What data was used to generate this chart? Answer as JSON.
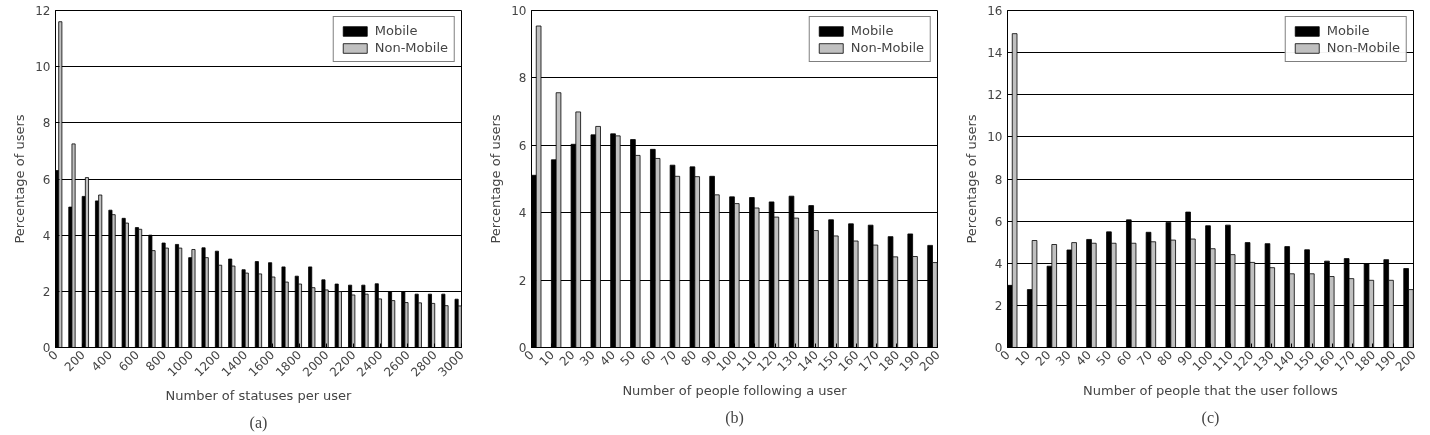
{
  "chart_data": [
    {
      "type": "bar",
      "xlabel": "Number of statuses per user",
      "ylabel": "Percentage of users",
      "annotations": [
        "(a)"
      ],
      "x": [
        0,
        98,
        197,
        295,
        394,
        492,
        590,
        689,
        787,
        886,
        984,
        1082,
        1181,
        1279,
        1378,
        1476,
        1574,
        1673,
        1771,
        1870,
        1968,
        2066,
        2165,
        2263,
        2362,
        2460,
        2558,
        2657,
        2755,
        2854,
        2952
      ],
      "series": [
        {
          "name": "Mobile",
          "color": "#000000",
          "values": [
            6.3,
            5.0,
            5.38,
            5.22,
            4.89,
            4.6,
            4.27,
            4.0,
            3.72,
            3.67,
            3.2,
            3.55,
            3.43,
            3.15,
            2.77,
            3.06,
            3.02,
            2.87,
            2.54,
            2.87,
            2.41,
            2.26,
            2.22,
            2.22,
            2.27,
            1.99,
            1.99,
            1.9,
            1.9,
            1.9,
            1.72
          ]
        },
        {
          "name": "Non-Mobile",
          "color": "#c0c0c0",
          "values": [
            11.6,
            7.25,
            6.05,
            5.43,
            4.73,
            4.43,
            4.21,
            3.45,
            3.54,
            3.54,
            3.49,
            3.2,
            2.93,
            2.9,
            2.65,
            2.62,
            2.51,
            2.33,
            2.26,
            2.13,
            2.05,
            1.99,
            1.87,
            1.9,
            1.73,
            1.67,
            1.6,
            1.59,
            1.57,
            1.49,
            1.48
          ]
        }
      ],
      "xlim": [
        0,
        3000
      ],
      "xticks": [
        0,
        200,
        400,
        600,
        800,
        1000,
        1200,
        1400,
        1600,
        1800,
        2000,
        2200,
        2400,
        2600,
        2800,
        3000
      ],
      "ylim": [
        0,
        12
      ],
      "yticks": [
        0,
        2,
        4,
        6,
        8,
        10,
        12
      ],
      "grid": "y",
      "legend": "top right"
    },
    {
      "type": "bar",
      "xlabel": "Number of people following a user",
      "ylabel": "Percentage of users",
      "annotations": [
        "(b)"
      ],
      "x": [
        0,
        9.8,
        19.5,
        29.3,
        39.0,
        48.8,
        58.6,
        68.3,
        78.1,
        87.8,
        97.6,
        107.4,
        117.1,
        126.9,
        136.6,
        146.4,
        156.2,
        165.9,
        175.7,
        185.4,
        195.2
      ],
      "series": [
        {
          "name": "Mobile",
          "color": "#000000",
          "values": [
            5.11,
            5.57,
            6.03,
            6.31,
            6.34,
            6.17,
            5.88,
            5.41,
            5.36,
            5.08,
            4.47,
            4.45,
            4.32,
            4.49,
            4.21,
            3.79,
            3.67,
            3.63,
            3.29,
            3.37,
            3.03
          ]
        },
        {
          "name": "Non-Mobile",
          "color": "#c0c0c0",
          "values": [
            9.54,
            7.56,
            6.99,
            6.56,
            6.28,
            5.7,
            5.61,
            5.08,
            5.07,
            4.53,
            4.27,
            4.14,
            3.87,
            3.84,
            3.47,
            3.31,
            3.16,
            3.04,
            2.69,
            2.7,
            2.52
          ]
        }
      ],
      "xlim": [
        0,
        200
      ],
      "xticks": [
        0,
        10,
        20,
        30,
        40,
        50,
        60,
        70,
        80,
        90,
        100,
        110,
        120,
        130,
        140,
        150,
        160,
        170,
        180,
        190,
        200
      ],
      "ylim": [
        0,
        10
      ],
      "yticks": [
        0,
        2,
        4,
        6,
        8,
        10
      ],
      "grid": "y",
      "legend": "top right"
    },
    {
      "type": "bar",
      "xlabel": "Number of people that the user follows",
      "ylabel": "Percentage of users",
      "annotations": [
        "(c)"
      ],
      "x": [
        0,
        9.8,
        19.5,
        29.3,
        39.0,
        48.8,
        58.6,
        68.3,
        78.1,
        87.8,
        97.6,
        107.4,
        117.1,
        126.9,
        136.6,
        146.4,
        156.2,
        165.9,
        175.7,
        185.4,
        195.2
      ],
      "series": [
        {
          "name": "Mobile",
          "color": "#000000",
          "values": [
            2.95,
            2.75,
            3.86,
            4.63,
            5.13,
            5.49,
            6.06,
            5.47,
            5.94,
            6.43,
            5.78,
            5.81,
            4.98,
            4.93,
            4.79,
            4.64,
            4.1,
            4.22,
            3.97,
            4.17,
            3.75
          ]
        },
        {
          "name": "Non-Mobile",
          "color": "#c0c0c0",
          "values": [
            14.9,
            5.08,
            4.89,
            4.98,
            4.95,
            4.95,
            4.95,
            5.02,
            5.1,
            5.15,
            4.69,
            4.41,
            4.04,
            3.79,
            3.5,
            3.5,
            3.37,
            3.27,
            3.19,
            3.19,
            2.75
          ]
        }
      ],
      "xlim": [
        0,
        200
      ],
      "xticks": [
        0,
        10,
        20,
        30,
        40,
        50,
        60,
        70,
        80,
        90,
        100,
        110,
        120,
        130,
        140,
        150,
        160,
        170,
        180,
        190,
        200
      ],
      "ylim": [
        0,
        16
      ],
      "yticks": [
        0,
        2,
        4,
        6,
        8,
        10,
        12,
        14,
        16
      ],
      "grid": "y",
      "legend": "top right"
    }
  ]
}
